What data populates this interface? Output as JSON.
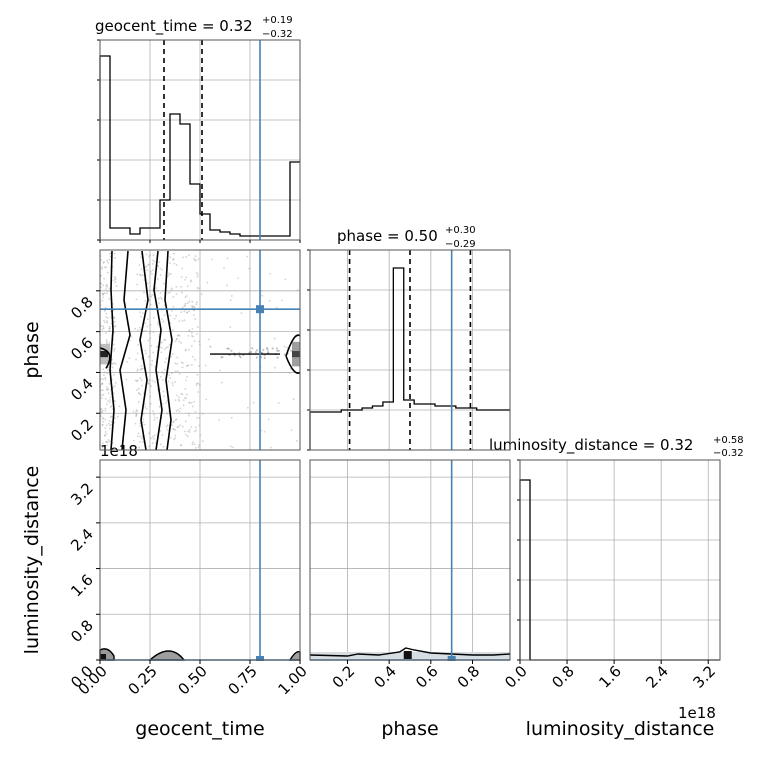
{
  "figure": {
    "colors": {
      "truth": "#4682b4",
      "hist": "#000000",
      "grid": "#b0b0b0",
      "scatter": "#9e9e9e",
      "frame": "#555555"
    }
  },
  "chart_data": [
    {
      "type": "histogram",
      "panel": "geocent_time-marginal",
      "title_main": "geocent_time = 0.32",
      "title_sup": "+0.19",
      "title_sub": "−0.32",
      "xlim": [
        0,
        1
      ],
      "bin_edges": [
        0.0,
        0.05,
        0.1,
        0.15,
        0.2,
        0.25,
        0.3,
        0.35,
        0.4,
        0.45,
        0.5,
        0.55,
        0.6,
        0.65,
        0.7,
        0.75,
        0.8,
        0.85,
        0.9,
        0.95,
        1.0
      ],
      "counts": [
        0.92,
        0.06,
        0.06,
        0.03,
        0.06,
        0.06,
        0.2,
        0.63,
        0.58,
        0.28,
        0.13,
        0.05,
        0.04,
        0.03,
        0.02,
        0.02,
        0.02,
        0.02,
        0.02,
        0.39
      ],
      "ylim": [
        0,
        1
      ],
      "quantiles": [
        0.32,
        0.51
      ],
      "truth": 0.8
    },
    {
      "type": "scatter",
      "panel": "phase-vs-geocent_time",
      "xlim": [
        0,
        1
      ],
      "ylim": [
        0.02,
        1.0
      ],
      "yticks": [
        "0.2",
        "0.4",
        "0.6",
        "0.8"
      ],
      "truth_x": 0.8,
      "truth_y": 0.71,
      "contour_levels": 3
    },
    {
      "type": "histogram",
      "panel": "phase-marginal",
      "title_main": "phase = 0.50",
      "title_sup": "+0.30",
      "title_sub": "−0.29",
      "xlim": [
        0.02,
        0.98
      ],
      "bin_edges": [
        0.02,
        0.07,
        0.12,
        0.17,
        0.22,
        0.27,
        0.32,
        0.37,
        0.42,
        0.47,
        0.52,
        0.57,
        0.62,
        0.67,
        0.72,
        0.77,
        0.82,
        0.87,
        0.92,
        0.98
      ],
      "counts": [
        0.19,
        0.19,
        0.19,
        0.2,
        0.2,
        0.21,
        0.22,
        0.24,
        0.91,
        0.25,
        0.23,
        0.23,
        0.22,
        0.22,
        0.21,
        0.21,
        0.2,
        0.2,
        0.2
      ],
      "ylim": [
        0,
        1
      ],
      "quantiles": [
        0.21,
        0.5,
        0.79
      ],
      "truth": 0.7
    },
    {
      "type": "scatter",
      "panel": "luminosity_distance-vs-geocent_time",
      "xlim": [
        0,
        1
      ],
      "xticks": [
        "0.00",
        "0.25",
        "0.50",
        "0.75",
        "1.00"
      ],
      "ylim": [
        0,
        3.5
      ],
      "yticks": [
        "0.0",
        "0.8",
        "1.6",
        "2.4",
        "3.2"
      ],
      "y_offset": "1e18",
      "xlabel": "geocent_time",
      "ylabel": "luminosity_distance",
      "truth_x": 0.8,
      "truth_y": 0.0
    },
    {
      "type": "scatter",
      "panel": "luminosity_distance-vs-phase",
      "xlim": [
        0.02,
        0.98
      ],
      "xticks": [
        "0.2",
        "0.4",
        "0.6",
        "0.8"
      ],
      "ylim": [
        0,
        3.5
      ],
      "xlabel": "phase",
      "truth_x": 0.7,
      "truth_y": 0.0
    },
    {
      "type": "histogram",
      "panel": "luminosity_distance-marginal",
      "title_main": "luminosity_distance = 0.32",
      "title_sup": "+0.58",
      "title_sub": "−0.32",
      "xlim": [
        0,
        3.4
      ],
      "xticks": [
        "0.0",
        "0.8",
        "1.6",
        "2.4",
        "3.2"
      ],
      "x_offset": "1e18",
      "xlabel": "luminosity_distance",
      "bin_edges": [
        0.0,
        0.17,
        3.4
      ],
      "counts": [
        0.9,
        0.0
      ],
      "ylim": [
        0,
        1
      ]
    }
  ]
}
